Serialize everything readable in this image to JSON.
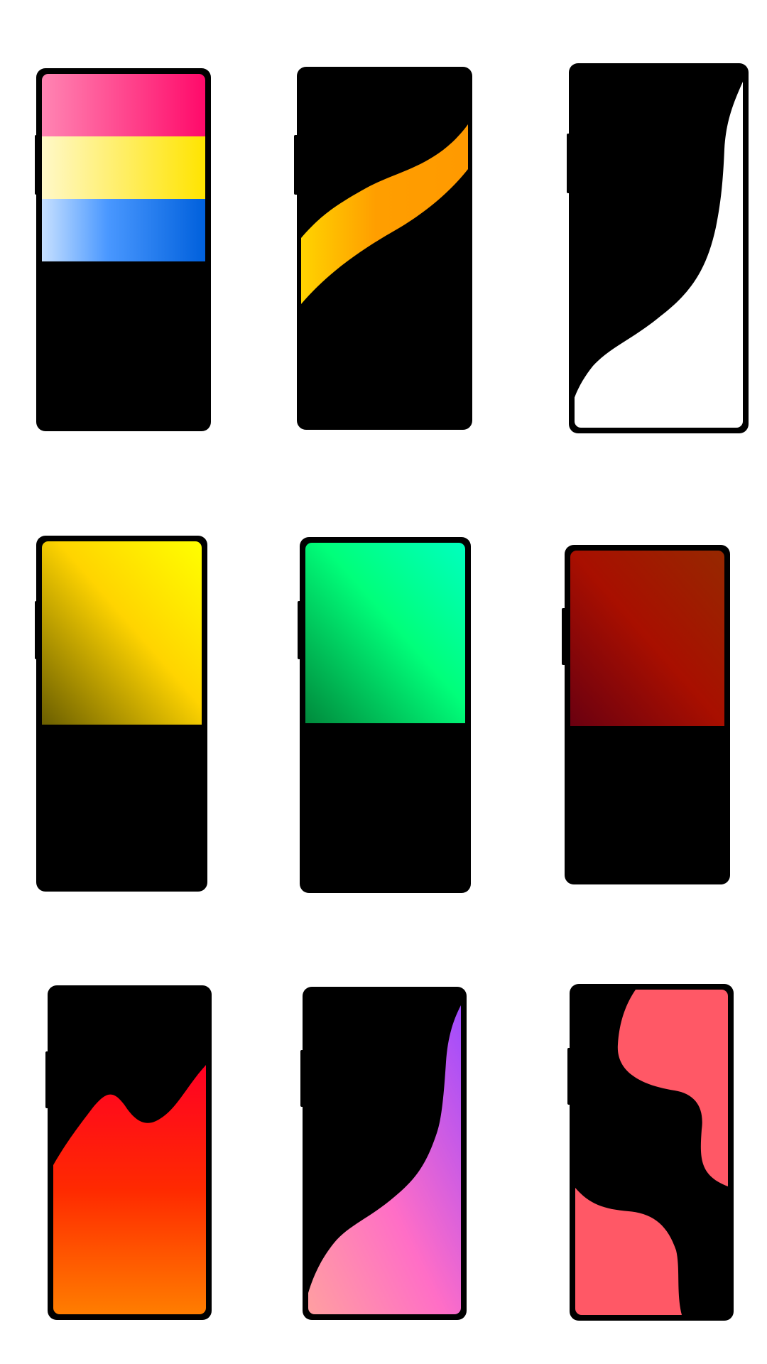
{
  "background": "#ffffff",
  "phone_color": "#000000",
  "wallpapers": [
    {
      "id": "stripes-pink-yellow-blue",
      "style": "stripes",
      "colors": {
        "pink": [
          "#ff85b3",
          "#ff0a6a"
        ],
        "yellow": [
          "#fff8c8",
          "#ffe400"
        ],
        "blue": [
          "#c7e0ff",
          "#0060dc"
        ]
      }
    },
    {
      "id": "orange-ribbon",
      "style": "ribbon",
      "colors": {
        "ribbon": [
          "#ffd300",
          "#ff9a00"
        ]
      }
    },
    {
      "id": "white-wave",
      "style": "wave",
      "colors": {
        "fill": "#ffffff",
        "border": "#000000"
      }
    },
    {
      "id": "yellow-gradient",
      "style": "square-gradient",
      "colors": {
        "corner": "#ffff00",
        "mid": "#ffd400",
        "dark": "#6a5e00"
      }
    },
    {
      "id": "green-gradient",
      "style": "square-gradient",
      "colors": {
        "corner": "#00ffbf",
        "mid": "#00ff7a",
        "dark": "#008a3c"
      }
    },
    {
      "id": "red-gradient",
      "style": "square-gradient",
      "colors": {
        "corner": "#962800",
        "mid": "#a80f00",
        "dark": "#6a0010"
      }
    },
    {
      "id": "red-orange-hills",
      "style": "hills",
      "colors": {
        "top": "#ff0024",
        "mid": "#ff2a00",
        "bottom": "#ff8000"
      }
    },
    {
      "id": "purple-pink-wave",
      "style": "wave-gradient",
      "colors": {
        "top": "#9e4bff",
        "mid": "#ff6ec6",
        "bottom": "#ffa0a0"
      }
    },
    {
      "id": "coral-blobs",
      "style": "blobs",
      "colors": {
        "blob": "#ff5866"
      }
    }
  ]
}
